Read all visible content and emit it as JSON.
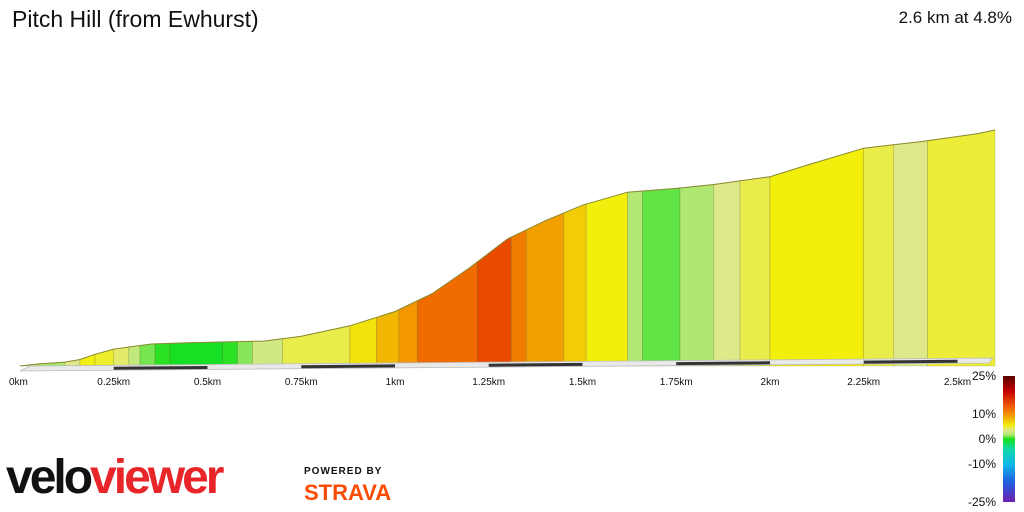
{
  "header": {
    "title": "Pitch Hill (from Ewhurst)",
    "summary": "2.6 km at 4.8%"
  },
  "branding": {
    "logo_part1": "velo",
    "logo_part2": "viewer",
    "powered_by": "POWERED BY",
    "strava": "STRAVA"
  },
  "colors": {
    "logo_red": "#e8262a",
    "strava_orange": "#fc4c02",
    "outline": "#8a8a30"
  },
  "chart_data": {
    "type": "area",
    "title": "Pitch Hill (from Ewhurst)",
    "xlabel": "",
    "ylabel": "",
    "xlim": [
      0,
      2.6
    ],
    "x_ticks": [
      {
        "value": 0,
        "label": "0km"
      },
      {
        "value": 0.25,
        "label": "0.25km"
      },
      {
        "value": 0.5,
        "label": "0.5km"
      },
      {
        "value": 0.75,
        "label": "0.75km"
      },
      {
        "value": 1,
        "label": "1km"
      },
      {
        "value": 1.25,
        "label": "1.25km"
      },
      {
        "value": 1.5,
        "label": "1.5km"
      },
      {
        "value": 1.75,
        "label": "1.75km"
      },
      {
        "value": 2,
        "label": "2km"
      },
      {
        "value": 2.25,
        "label": "2.25km"
      },
      {
        "value": 2.5,
        "label": "2.5km"
      }
    ],
    "profile": [
      {
        "x": 0.0,
        "y": 0.0
      },
      {
        "x": 0.05,
        "y": 0.8
      },
      {
        "x": 0.12,
        "y": 1.5
      },
      {
        "x": 0.16,
        "y": 2.5
      },
      {
        "x": 0.2,
        "y": 4.5
      },
      {
        "x": 0.25,
        "y": 6.5
      },
      {
        "x": 0.35,
        "y": 8.5
      },
      {
        "x": 0.45,
        "y": 9.0
      },
      {
        "x": 0.55,
        "y": 9.3
      },
      {
        "x": 0.65,
        "y": 9.6
      },
      {
        "x": 0.75,
        "y": 11.5
      },
      {
        "x": 0.88,
        "y": 15.5
      },
      {
        "x": 1.0,
        "y": 21.0
      },
      {
        "x": 1.1,
        "y": 28.0
      },
      {
        "x": 1.2,
        "y": 38.0
      },
      {
        "x": 1.3,
        "y": 49.0
      },
      {
        "x": 1.4,
        "y": 56.0
      },
      {
        "x": 1.5,
        "y": 62.0
      },
      {
        "x": 1.62,
        "y": 67.0
      },
      {
        "x": 1.75,
        "y": 68.5
      },
      {
        "x": 1.85,
        "y": 70.0
      },
      {
        "x": 2.0,
        "y": 73.0
      },
      {
        "x": 2.1,
        "y": 77.5
      },
      {
        "x": 2.25,
        "y": 84.0
      },
      {
        "x": 2.4,
        "y": 86.5
      },
      {
        "x": 2.55,
        "y": 89.5
      },
      {
        "x": 2.6,
        "y": 91.0
      }
    ],
    "gradient_segments": [
      {
        "from": 0.0,
        "to": 0.05,
        "grade": 2.5
      },
      {
        "from": 0.05,
        "to": 0.12,
        "grade": 1.5
      },
      {
        "from": 0.12,
        "to": 0.16,
        "grade": 3.5
      },
      {
        "from": 0.16,
        "to": 0.2,
        "grade": 5.5
      },
      {
        "from": 0.2,
        "to": 0.25,
        "grade": 5.0
      },
      {
        "from": 0.25,
        "to": 0.29,
        "grade": 4.0
      },
      {
        "from": 0.29,
        "to": 0.32,
        "grade": 2.5
      },
      {
        "from": 0.32,
        "to": 0.36,
        "grade": 1.0
      },
      {
        "from": 0.36,
        "to": 0.4,
        "grade": 0.2
      },
      {
        "from": 0.4,
        "to": 0.54,
        "grade": -0.3
      },
      {
        "from": 0.54,
        "to": 0.58,
        "grade": 0.2
      },
      {
        "from": 0.58,
        "to": 0.62,
        "grade": 1.2
      },
      {
        "from": 0.62,
        "to": 0.7,
        "grade": 3.0
      },
      {
        "from": 0.7,
        "to": 0.88,
        "grade": 4.5
      },
      {
        "from": 0.88,
        "to": 0.95,
        "grade": 6.0
      },
      {
        "from": 0.95,
        "to": 1.01,
        "grade": 8.0
      },
      {
        "from": 1.01,
        "to": 1.06,
        "grade": 9.5
      },
      {
        "from": 1.06,
        "to": 1.22,
        "grade": 12.0
      },
      {
        "from": 1.22,
        "to": 1.31,
        "grade": 14.0
      },
      {
        "from": 1.31,
        "to": 1.35,
        "grade": 11.0
      },
      {
        "from": 1.35,
        "to": 1.45,
        "grade": 9.0
      },
      {
        "from": 1.45,
        "to": 1.51,
        "grade": 7.0
      },
      {
        "from": 1.51,
        "to": 1.62,
        "grade": 5.5
      },
      {
        "from": 1.62,
        "to": 1.66,
        "grade": 2.0
      },
      {
        "from": 1.66,
        "to": 1.76,
        "grade": 0.8
      },
      {
        "from": 1.76,
        "to": 1.85,
        "grade": 1.8
      },
      {
        "from": 1.85,
        "to": 1.92,
        "grade": 3.5
      },
      {
        "from": 1.92,
        "to": 2.0,
        "grade": 4.5
      },
      {
        "from": 2.0,
        "to": 2.25,
        "grade": 5.5
      },
      {
        "from": 2.25,
        "to": 2.33,
        "grade": 4.5
      },
      {
        "from": 2.33,
        "to": 2.42,
        "grade": 3.5
      },
      {
        "from": 2.42,
        "to": 2.6,
        "grade": 4.8
      }
    ],
    "legend": {
      "type": "colorbar",
      "placement": "bottom-right",
      "ticks": [
        {
          "value": 25,
          "label": "25%"
        },
        {
          "value": 10,
          "label": "10%"
        },
        {
          "value": 0,
          "label": "0%"
        },
        {
          "value": -10,
          "label": "-10%"
        },
        {
          "value": -25,
          "label": "-25%"
        }
      ],
      "stops": [
        {
          "value": 25,
          "color": "#5a0000"
        },
        {
          "value": 19,
          "color": "#c40000"
        },
        {
          "value": 13,
          "color": "#f05a00"
        },
        {
          "value": 9,
          "color": "#f2a000"
        },
        {
          "value": 5.5,
          "color": "#f2ef0c"
        },
        {
          "value": 3.5,
          "color": "#dfe98a"
        },
        {
          "value": 1.5,
          "color": "#a5e86c"
        },
        {
          "value": 0,
          "color": "#18e018"
        },
        {
          "value": -4,
          "color": "#10d8a8"
        },
        {
          "value": -10,
          "color": "#10b8e8"
        },
        {
          "value": -17,
          "color": "#2060e0"
        },
        {
          "value": -25,
          "color": "#7020b0"
        }
      ]
    }
  }
}
